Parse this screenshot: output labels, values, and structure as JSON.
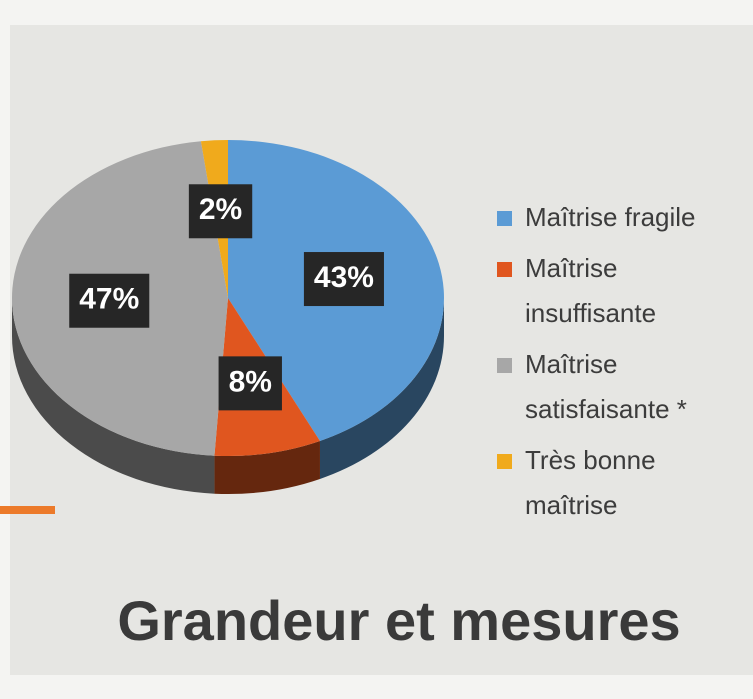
{
  "chart_data": {
    "type": "pie",
    "title": "Grandeur et mesures",
    "categories": [
      "Maîtrise fragile",
      "Maîtrise insuffisante",
      "Maîtrise satisfaisante *",
      "Très bonne maîtrise"
    ],
    "values": [
      43,
      8,
      47,
      2
    ],
    "value_labels": [
      "43%",
      "8%",
      "47%",
      "2%"
    ],
    "colors": [
      "#5b9bd5",
      "#e0561f",
      "#a7a7a7",
      "#f0aa1c"
    ],
    "legend": "right"
  }
}
